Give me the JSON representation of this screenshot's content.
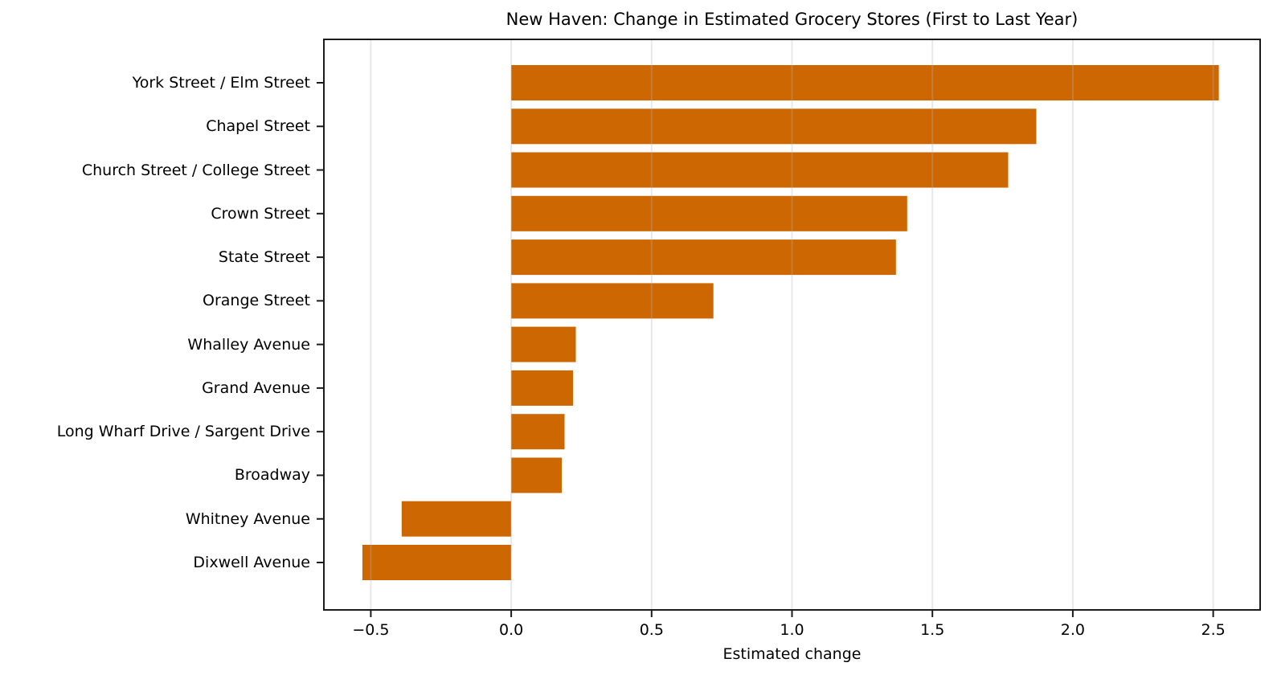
{
  "chart_data": {
    "type": "bar",
    "orientation": "horizontal",
    "title": "New Haven: Change in Estimated Grocery Stores (First to Last Year)",
    "xlabel": "Estimated change",
    "ylabel": "",
    "categories": [
      "York Street / Elm Street",
      "Chapel Street",
      "Church Street / College Street",
      "Crown Street",
      "State Street",
      "Orange Street",
      "Whalley Avenue",
      "Grand Avenue",
      "Long Wharf Drive / Sargent Drive",
      "Broadway",
      "Whitney Avenue",
      "Dixwell Avenue"
    ],
    "values": [
      2.52,
      1.87,
      1.77,
      1.41,
      1.37,
      0.72,
      0.23,
      0.22,
      0.19,
      0.18,
      -0.39,
      -0.53
    ],
    "xlim": [
      -0.67,
      2.67
    ],
    "xticks": [
      -0.5,
      0,
      0.5,
      1,
      1.5,
      2,
      2.5
    ],
    "xtick_labels": [
      "−0.5",
      "0.0",
      "0.5",
      "1.0",
      "1.5",
      "2.0",
      "2.5"
    ],
    "grid": true,
    "legend": false,
    "bar_color": "#cc6702",
    "background": "#ffffff",
    "spine_color": "#1c1c1c",
    "grid_color": "#b2b2b2"
  }
}
